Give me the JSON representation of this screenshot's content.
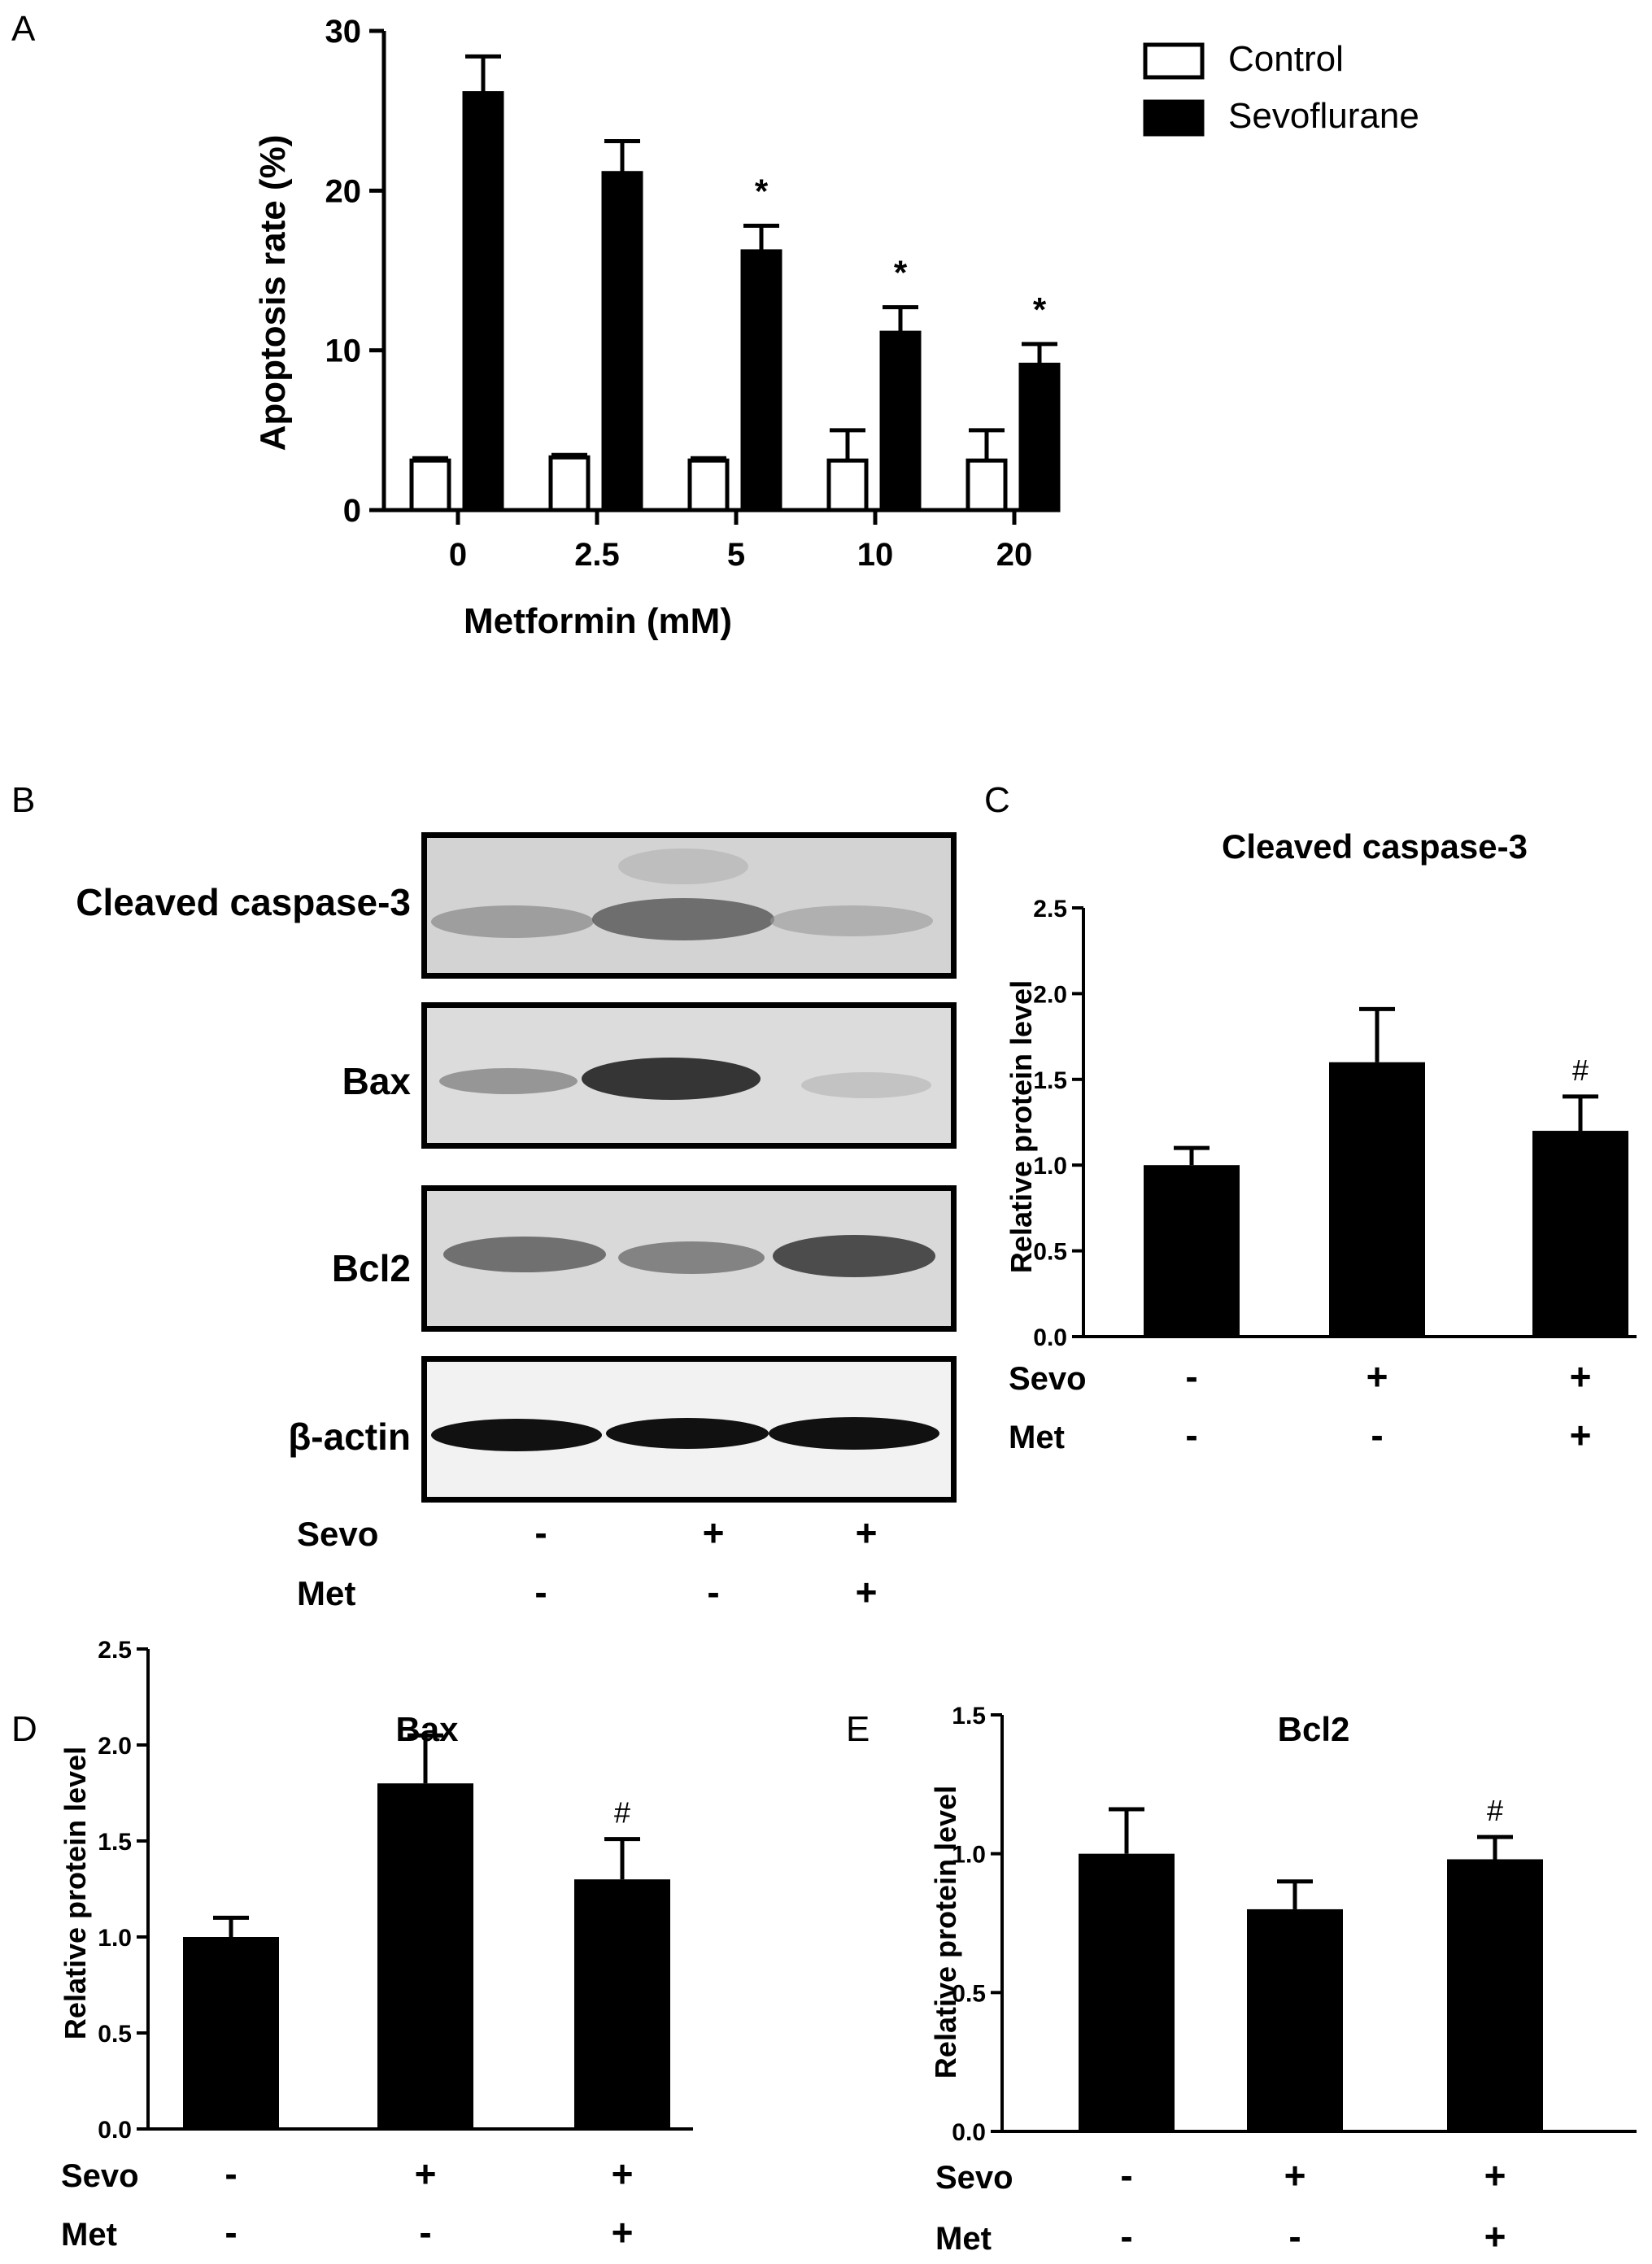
{
  "panel_labels": {
    "a": "A",
    "b": "B",
    "c": "C",
    "d": "D",
    "e": "E"
  },
  "chart_data": [
    {
      "id": "A",
      "type": "bar",
      "title": "",
      "xlabel": "Metformin (mM)",
      "ylabel": "Apoptosis rate (%)",
      "categories": [
        "0",
        "2.5",
        "5",
        "10",
        "20"
      ],
      "ylim": [
        0,
        30
      ],
      "yticks": [
        "0",
        "10",
        "20",
        "30"
      ],
      "legend_position": "top-right",
      "series": [
        {
          "name": "Control",
          "fill": "#ffffff",
          "stroke": "#000000",
          "values": [
            3.1,
            3.3,
            3.1,
            3.1,
            3.1
          ],
          "errors": [
            0.15,
            0.15,
            0.15,
            1.9,
            1.9
          ]
        },
        {
          "name": "Sevoflurane",
          "fill": "#000000",
          "stroke": "#000000",
          "values": [
            26.1,
            21.1,
            16.2,
            11.1,
            9.1
          ],
          "errors": [
            2.3,
            2.0,
            1.6,
            1.6,
            1.3
          ]
        }
      ],
      "annotations": [
        "",
        "",
        "*",
        "*",
        "*"
      ]
    },
    {
      "id": "C",
      "type": "bar",
      "title": "Cleaved caspase-3",
      "xlabel": "",
      "ylabel": "Relative protein level",
      "ylim": [
        0,
        2.5
      ],
      "yticks": [
        "0.0",
        "0.5",
        "1.0",
        "1.5",
        "2.0",
        "2.5"
      ],
      "values": [
        1.0,
        1.6,
        1.2
      ],
      "errors": [
        0.1,
        0.31,
        0.2
      ],
      "annotations": [
        "",
        "",
        "#"
      ],
      "condition_rows": [
        {
          "label": "Sevo",
          "marks": [
            "-",
            "+",
            "+"
          ]
        },
        {
          "label": "Met",
          "marks": [
            "-",
            "-",
            "+"
          ]
        }
      ]
    },
    {
      "id": "D",
      "type": "bar",
      "title": "Bax",
      "xlabel": "",
      "ylabel": "Relative protein level",
      "ylim": [
        0,
        2.5
      ],
      "yticks": [
        "0.0",
        "0.5",
        "1.0",
        "1.5",
        "2.0",
        "2.5"
      ],
      "values": [
        1.0,
        1.8,
        1.3
      ],
      "errors": [
        0.1,
        0.25,
        0.21
      ],
      "annotations": [
        "",
        "",
        "#"
      ],
      "condition_rows": [
        {
          "label": "Sevo",
          "marks": [
            "-",
            "+",
            "+"
          ]
        },
        {
          "label": "Met",
          "marks": [
            "-",
            "-",
            "+"
          ]
        }
      ]
    },
    {
      "id": "E",
      "type": "bar",
      "title": "Bcl2",
      "xlabel": "",
      "ylabel": "Relative protein level",
      "ylim": [
        0,
        1.5
      ],
      "yticks": [
        "0.0",
        "0.5",
        "1.0",
        "1.5"
      ],
      "values": [
        1.0,
        0.8,
        0.98
      ],
      "errors": [
        0.16,
        0.1,
        0.08
      ],
      "annotations": [
        "",
        "",
        "#"
      ],
      "condition_rows": [
        {
          "label": "Sevo",
          "marks": [
            "-",
            "+",
            "+"
          ]
        },
        {
          "label": "Met",
          "marks": [
            "-",
            "-",
            "+"
          ]
        }
      ]
    }
  ],
  "western_blot": {
    "rows": [
      {
        "label": "Cleaved caspase-3"
      },
      {
        "label": "Bax"
      },
      {
        "label": "Bcl2"
      },
      {
        "label": "β-actin"
      }
    ],
    "condition_rows": [
      {
        "label": "Sevo",
        "marks": [
          "-",
          "+",
          "+"
        ]
      },
      {
        "label": "Met",
        "marks": [
          "-",
          "-",
          "+"
        ]
      }
    ]
  }
}
